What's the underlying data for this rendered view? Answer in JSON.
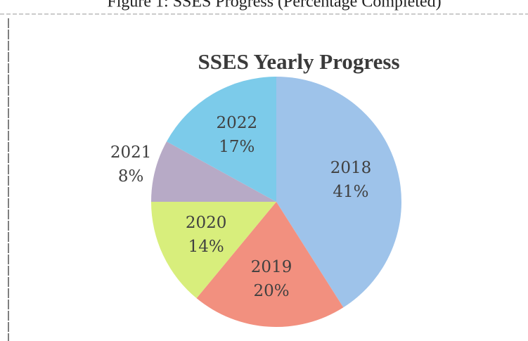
{
  "caption": "Figure 1: SSES Progress (Percentage Completed)",
  "chart_data": {
    "type": "pie",
    "title": "SSES Yearly Progress",
    "categories": [
      "2018",
      "2019",
      "2020",
      "2021",
      "2022"
    ],
    "values": [
      41,
      20,
      14,
      8,
      17
    ],
    "value_labels": [
      "41%",
      "20%",
      "14%",
      "8%",
      "17%"
    ],
    "colors": [
      "#9ec3ea",
      "#f2907f",
      "#d8ee7c",
      "#b7aac6",
      "#7ccbea"
    ],
    "start_angle": 0,
    "direction": "clockwise"
  }
}
